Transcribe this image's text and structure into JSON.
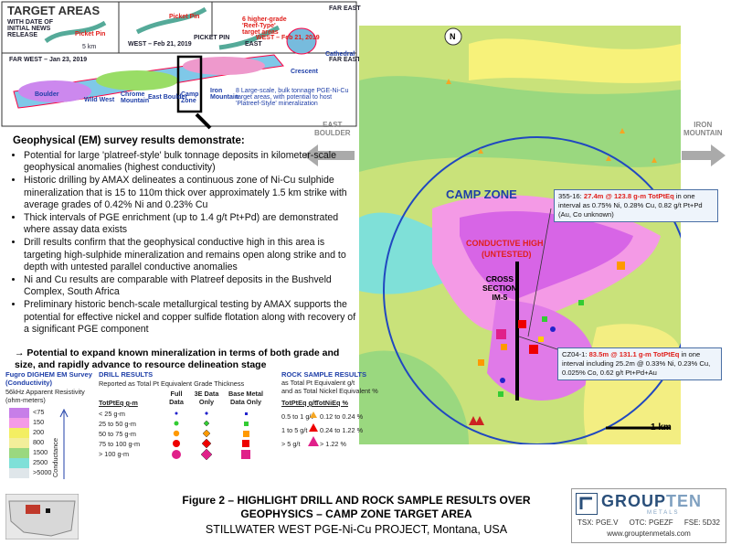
{
  "inset": {
    "title": "TARGET AREAS",
    "subtitle": "WITH DATE OF INITIAL NEWS RELEASE",
    "labels": [
      "Picket Pin",
      "5 km",
      "Picket Pin",
      "FAR EAST",
      "WEST – Feb 21, 2019",
      "PICKET PIN",
      "EAST",
      "FAR WEST – Jan 23, 2019",
      "FAR EAST",
      "Cathedral",
      "Crescent",
      "Boulder",
      "Wild West",
      "Chrome Mountain",
      "East Boulder",
      "Camp Zone",
      "Iron Mountain"
    ],
    "reef_note": "6 higher-grade 'Reef-Type' target areas",
    "bulk_note": "8 Large-scale, bulk tonnage PGE-Ni-Cu target areas, with potential to host 'Platreef-Style' mineralization"
  },
  "arrows": {
    "left": [
      "EAST",
      "BOULDER"
    ],
    "right": [
      "IRON",
      "MOUNTAIN"
    ]
  },
  "map": {
    "north": "N",
    "zone": "CAMP ZONE",
    "conductive": "CONDUCTIVE HIGH",
    "untested": "(UNTESTED)",
    "cross": [
      "CROSS",
      "SECTION",
      "IM-5"
    ],
    "scale": "1 km",
    "callout1": {
      "hole": "355-16:",
      "grade": "27.4m @ 123.8 g-m TotPtEq",
      "text": "in one interval as 0.75% Ni, 0.28% Cu, 0.82 g/t Pt+Pd   (Au, Co unknown)"
    },
    "callout2": {
      "hole": "CZ04-1:",
      "grade": "83.5m @ 131.1 g-m TotPtEq",
      "text": "in one interval including 25.2m @ 0.33% Ni, 0.23% Cu, 0.025% Co, 0.62 g/t Pt+Pd+Au"
    }
  },
  "summary": {
    "heading": "Geophysical (EM) survey results demonstrate:",
    "bullets": [
      "Potential for large 'platreef-style' bulk tonnage deposits in kilometer-scale geophysical anomalies (highest conductivity)",
      "Historic drilling by AMAX delineates a continuous zone of Ni-Cu sulphide mineralization that is 15 to 110m thick over approximately 1.5 km strike with average grades of 0.42% Ni and 0.23% Cu",
      "Thick intervals of PGE enrichment (up to 1.4 g/t Pt+Pd) are demonstrated where assay data exists",
      "Drill results confirm that the geophysical conductive high in this area is targeting high-sulphide mineralization and remains open along strike and to depth with untested parallel conductive anomalies",
      "Ni and Cu results are comparable with Platreef deposits in the Bushveld Complex, South Africa",
      "Preliminary historic bench-scale metallurgical testing by AMAX supports the potential for effective nickel and copper sulfide flotation along with recovery of a significant PGE component"
    ],
    "conclusion": "→ Potential to expand known mineralization in terms of both grade and size, and rapidly advance to resource delineation stage"
  },
  "legend_em": {
    "title": [
      "Fugro DIGHEM EM Survey",
      "(Conductivity)"
    ],
    "subtitle": [
      "56kHz Apparent Resistivity",
      "(ohm-meters)"
    ],
    "ranges": [
      "<75",
      "150",
      "200",
      "800",
      "1500",
      "2500",
      ">5000"
    ],
    "axis": "Conductance"
  },
  "legend_drill": {
    "title": "DRILL RESULTS",
    "subtitle": "Reported as Total Pt Equivalent Grade Thickness",
    "headers": [
      "TotPtEq g-m",
      "Full Data",
      "3E Data Only",
      "Base Metal Data Only"
    ],
    "rows": [
      "< 25 g-m",
      "25 to 50 g-m",
      "50 to 75 g-m",
      "75 to 100 g-m",
      "> 100 g-m"
    ]
  },
  "legend_rock": {
    "title": "ROCK SAMPLE RESULTS",
    "subtitle": [
      "as Total Pt Equivalent g/t",
      "and as Total Nickel Equivalent %"
    ],
    "headers": [
      "TotPtEq g/t",
      "TotNiEq %"
    ],
    "rows": [
      [
        "0.5 to 1 g/t",
        "0.12 to 0.24 %"
      ],
      [
        "1 to 5 g/t",
        "0.24 to 1.22 %"
      ],
      [
        "> 5 g/t",
        "> 1.22 %"
      ]
    ]
  },
  "caption": {
    "line1": "Figure 2  –  HIGHLIGHT DRILL AND ROCK SAMPLE RESULTS OVER",
    "line2": "GEOPHYSICS – CAMP ZONE TARGET AREA",
    "line3": "STILLWATER WEST PGE-Ni-Cu PROJECT, Montana, USA"
  },
  "logo": {
    "group": "GROUP",
    "ten": "TEN",
    "metals": "METALS",
    "tickers": [
      "TSX: PGE.V",
      "OTC: PGEZF",
      "FSE: 5D32"
    ],
    "url": "www.grouptenmetals.com"
  }
}
